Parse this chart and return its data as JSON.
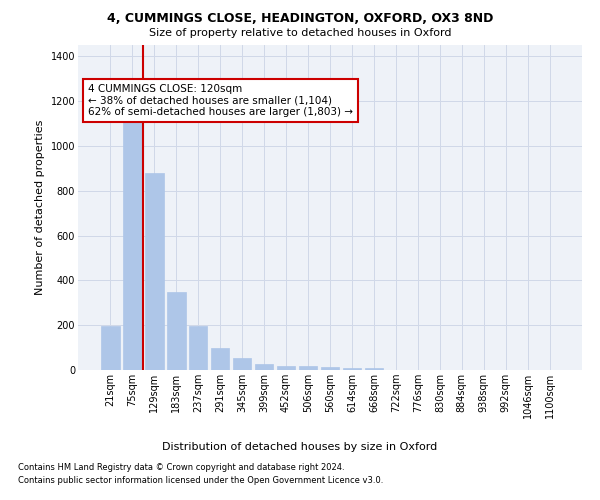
{
  "title1": "4, CUMMINGS CLOSE, HEADINGTON, OXFORD, OX3 8ND",
  "title2": "Size of property relative to detached houses in Oxford",
  "xlabel": "Distribution of detached houses by size in Oxford",
  "ylabel": "Number of detached properties",
  "categories": [
    "21sqm",
    "75sqm",
    "129sqm",
    "183sqm",
    "237sqm",
    "291sqm",
    "345sqm",
    "399sqm",
    "452sqm",
    "506sqm",
    "560sqm",
    "614sqm",
    "668sqm",
    "722sqm",
    "776sqm",
    "830sqm",
    "884sqm",
    "938sqm",
    "992sqm",
    "1046sqm",
    "1100sqm"
  ],
  "values": [
    195,
    1115,
    880,
    350,
    195,
    100,
    55,
    25,
    20,
    18,
    15,
    10,
    10,
    0,
    0,
    0,
    0,
    0,
    0,
    0,
    0
  ],
  "bar_color": "#aec6e8",
  "bar_edge_color": "#aec6e8",
  "grid_color": "#d0d8e8",
  "bg_color": "#eef2f8",
  "annotation_text_line1": "4 CUMMINGS CLOSE: 120sqm",
  "annotation_text_line2": "← 38% of detached houses are smaller (1,104)",
  "annotation_text_line3": "62% of semi-detached houses are larger (1,803) →",
  "annotation_box_color": "#ffffff",
  "annotation_border_color": "#cc0000",
  "red_line_color": "#cc0000",
  "footer_line1": "Contains HM Land Registry data © Crown copyright and database right 2024.",
  "footer_line2": "Contains public sector information licensed under the Open Government Licence v3.0.",
  "ylim": [
    0,
    1450
  ],
  "yticks": [
    0,
    200,
    400,
    600,
    800,
    1000,
    1200,
    1400
  ],
  "title1_fontsize": 9,
  "title2_fontsize": 8,
  "ylabel_fontsize": 8,
  "xlabel_fontsize": 8,
  "tick_fontsize": 7,
  "footer_fontsize": 6,
  "ann_fontsize": 7.5
}
